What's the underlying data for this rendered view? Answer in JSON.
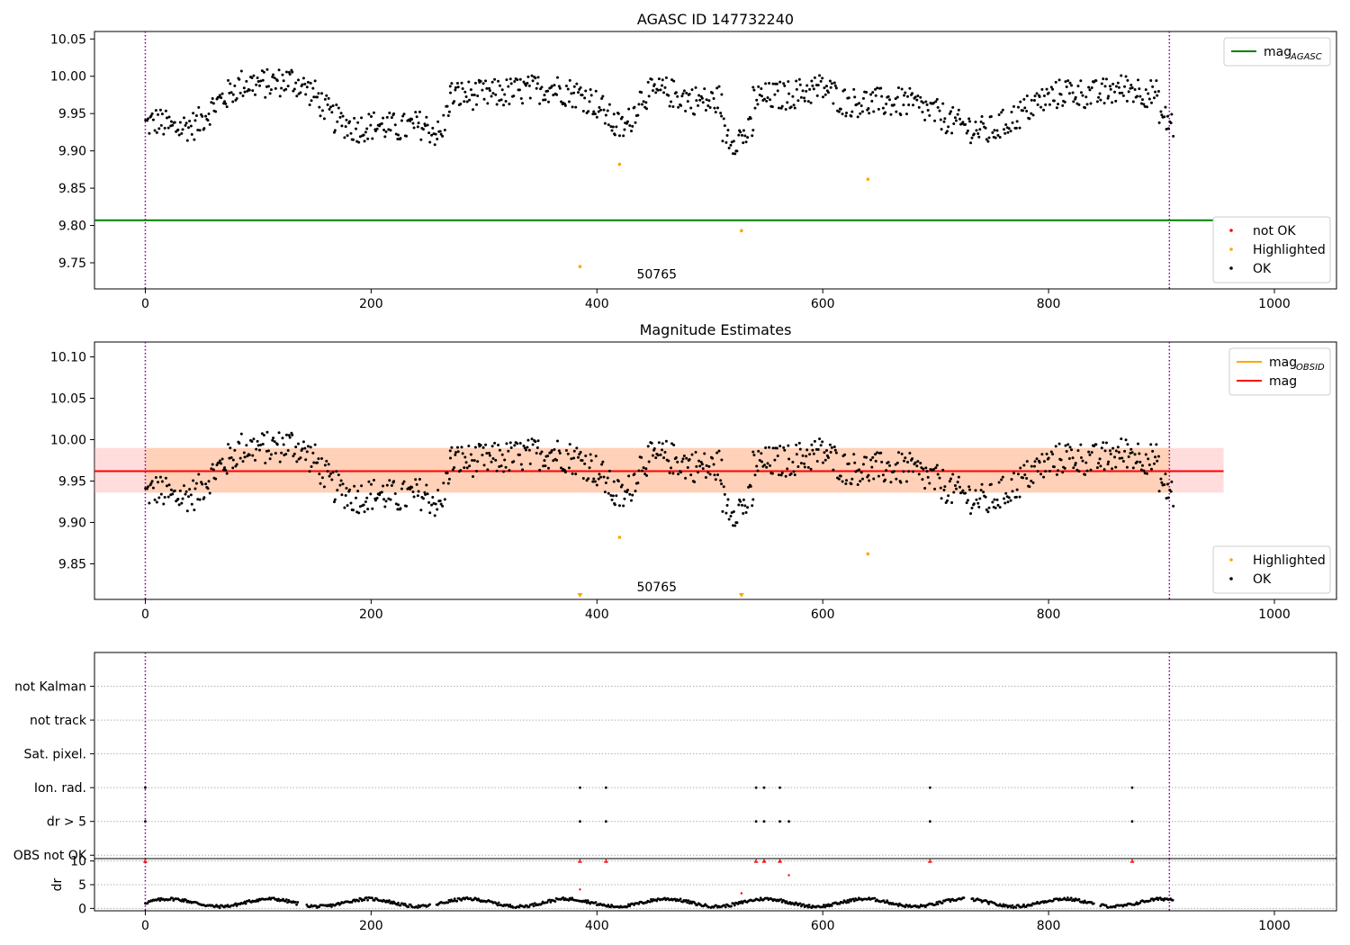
{
  "figure": {
    "colors": {
      "ok": "#000000",
      "highlighted": "#ffa500",
      "not_ok": "#ff0000",
      "mag_agasc": "#008000",
      "mag": "#ff0000",
      "mag_obsid": "#ffa500",
      "band_mag": "#ff9f9f",
      "band_obsid": "#ffc9a0",
      "vline": "#800080"
    }
  },
  "chart_data": [
    {
      "type": "scatter",
      "title": "AGASC ID 147732240",
      "xlim": [
        -45,
        1055
      ],
      "ylim": [
        9.715,
        10.06
      ],
      "yticks": [
        9.75,
        9.8,
        9.85,
        9.9,
        9.95,
        10.0,
        10.05
      ],
      "ytick_labels": [
        "9.75",
        "9.80",
        "9.85",
        "9.90",
        "9.95",
        "10.00",
        "10.05"
      ],
      "xticks": [
        0,
        200,
        400,
        600,
        800,
        1000
      ],
      "xtick_labels": [
        "0",
        "200",
        "400",
        "600",
        "800",
        "1000"
      ],
      "vlines": [
        0,
        907
      ],
      "annotation": {
        "text": "50765",
        "x": 453,
        "y": 9.735
      },
      "hlines": [
        {
          "name": "mag_AGASC",
          "y": 9.807,
          "x0": -45,
          "x1": 955
        }
      ],
      "ok_series": {
        "name": "OK",
        "segments": [
          {
            "x0": 0,
            "x1": 270,
            "knots": [
              [
                0,
                9.935
              ],
              [
                10,
                9.94
              ],
              [
                25,
                9.93
              ],
              [
                45,
                9.935
              ],
              [
                60,
                9.96
              ],
              [
                85,
                9.99
              ],
              [
                110,
                9.99
              ],
              [
                130,
                9.995
              ],
              [
                150,
                9.975
              ],
              [
                165,
                9.945
              ],
              [
                185,
                9.93
              ],
              [
                205,
                9.935
              ],
              [
                225,
                9.93
              ],
              [
                245,
                9.935
              ],
              [
                262,
                9.92
              ],
              [
                270,
                9.975
              ]
            ]
          },
          {
            "x0": 270,
            "x1": 415,
            "knots": [
              [
                270,
                9.975
              ],
              [
                300,
                9.975
              ],
              [
                330,
                9.98
              ],
              [
                360,
                9.985
              ],
              [
                385,
                9.975
              ],
              [
                398,
                9.965
              ],
              [
                405,
                9.955
              ],
              [
                415,
                9.935
              ]
            ]
          },
          {
            "x0": 415,
            "x1": 510,
            "knots": [
              [
                415,
                9.935
              ],
              [
                425,
                9.93
              ],
              [
                440,
                9.975
              ],
              [
                460,
                9.98
              ],
              [
                480,
                9.97
              ],
              [
                500,
                9.965
              ],
              [
                510,
                9.97
              ]
            ]
          },
          {
            "x0": 510,
            "x1": 538,
            "knots": [
              [
                510,
                9.93
              ],
              [
                520,
                9.915
              ],
              [
                530,
                9.92
              ],
              [
                538,
                9.93
              ]
            ]
          },
          {
            "x0": 538,
            "x1": 910,
            "knots": [
              [
                538,
                9.97
              ],
              [
                570,
                9.975
              ],
              [
                600,
                9.985
              ],
              [
                620,
                9.965
              ],
              [
                650,
                9.965
              ],
              [
                675,
                9.965
              ],
              [
                700,
                9.95
              ],
              [
                720,
                9.935
              ],
              [
                745,
                9.925
              ],
              [
                765,
                9.94
              ],
              [
                790,
                9.965
              ],
              [
                815,
                9.98
              ],
              [
                840,
                9.975
              ],
              [
                870,
                9.985
              ],
              [
                895,
                9.975
              ],
              [
                900,
                9.945
              ],
              [
                910,
                9.935
              ]
            ]
          }
        ],
        "noise": 0.02
      },
      "highlighted": {
        "name": "Highlighted",
        "points": [
          [
            385,
            9.745
          ],
          [
            420,
            9.882
          ],
          [
            528,
            9.793
          ],
          [
            640,
            9.862
          ]
        ]
      },
      "legends": [
        {
          "position": "upper right",
          "entries": [
            {
              "label": "mag",
              "sub": "AGASC",
              "kind": "line",
              "color": "#008000"
            }
          ]
        },
        {
          "position": "lower right",
          "entries": [
            {
              "label": "not OK",
              "kind": "dot",
              "color": "#ff0000"
            },
            {
              "label": "Highlighted",
              "kind": "dot",
              "color": "#ffa500"
            },
            {
              "label": "OK",
              "kind": "dot",
              "color": "#000000"
            }
          ]
        }
      ]
    },
    {
      "type": "scatter",
      "title": "Magnitude Estimates",
      "xlim": [
        -45,
        1055
      ],
      "ylim": [
        9.807,
        10.118
      ],
      "yticks": [
        9.85,
        9.9,
        9.95,
        10.0,
        10.05,
        10.1
      ],
      "ytick_labels": [
        "9.85",
        "9.90",
        "9.95",
        "10.00",
        "10.05",
        "10.10"
      ],
      "xticks": [
        0,
        200,
        400,
        600,
        800,
        1000
      ],
      "xtick_labels": [
        "0",
        "200",
        "400",
        "600",
        "800",
        "1000"
      ],
      "vlines": [
        0,
        907
      ],
      "annotation": {
        "text": "50765",
        "x": 453,
        "y": 9.822
      },
      "mag": 9.962,
      "mag_band": [
        9.936,
        9.99
      ],
      "mag_obsid_band": [
        9.936,
        9.99
      ],
      "band_x": [
        -45,
        955
      ],
      "highlighted": {
        "name": "Highlighted",
        "points": [
          [
            420,
            9.882
          ],
          [
            640,
            9.862
          ]
        ]
      },
      "offscale_markers": [
        385,
        528
      ],
      "legends": [
        {
          "position": "upper right",
          "entries": [
            {
              "label": "mag",
              "sub": "OBSID",
              "kind": "line",
              "color": "#ffa500"
            },
            {
              "label": "mag",
              "kind": "line",
              "color": "#ff0000"
            }
          ]
        },
        {
          "position": "lower right",
          "entries": [
            {
              "label": "Highlighted",
              "kind": "dot",
              "color": "#ffa500"
            },
            {
              "label": "OK",
              "kind": "dot",
              "color": "#000000"
            }
          ]
        }
      ]
    },
    {
      "type": "scatter",
      "title": "",
      "xlim": [
        -45,
        1055
      ],
      "categories": [
        "not Kalman",
        "not track",
        "Sat. pixel.",
        "Ion. rad.",
        "dr > 5",
        "OBS not OK"
      ],
      "flag_points": {
        "Ion. rad.": [
          0,
          385,
          408,
          541,
          548,
          562,
          695,
          874
        ],
        "dr > 5": [
          0,
          385,
          408,
          541,
          548,
          562,
          570,
          695,
          874
        ]
      },
      "vlines": [
        0,
        907
      ]
    },
    {
      "type": "scatter",
      "title": "",
      "ylabel": "dr",
      "xlim": [
        -45,
        1055
      ],
      "ylim": [
        -0.5,
        10.5
      ],
      "yticks": [
        0,
        5,
        10
      ],
      "ytick_labels": [
        "0",
        "5",
        "10"
      ],
      "xticks": [
        0,
        200,
        400,
        600,
        800,
        1000
      ],
      "xtick_labels": [
        "0",
        "200",
        "400",
        "600",
        "800",
        "1000"
      ],
      "vlines": [
        0,
        907
      ],
      "clipped_markers": [
        0,
        385,
        408,
        541,
        548,
        562,
        695,
        874
      ],
      "not_ok_points": [
        [
          570,
          7.0
        ],
        [
          385,
          4.0
        ],
        [
          528,
          3.2
        ]
      ]
    }
  ]
}
